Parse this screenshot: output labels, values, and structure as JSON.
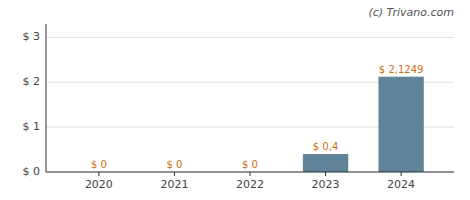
{
  "chart_data": {
    "type": "bar",
    "x": [
      2020,
      2021,
      2022,
      2023,
      2024
    ],
    "values": [
      0,
      0,
      0,
      0.4,
      2.1249
    ],
    "value_labels": [
      "$ 0",
      "$ 0",
      "$ 0",
      "$ 0,4",
      "$ 2,1249"
    ],
    "data_labels": true,
    "color": "#5f8499",
    "xlim": [
      2019.3,
      2024.7
    ],
    "xticks": [
      2020,
      2021,
      2022,
      2023,
      2024
    ],
    "ylim": [
      0,
      3.3
    ],
    "yticks": [
      {
        "value": 0,
        "label": "$ 0"
      },
      {
        "value": 1,
        "label": "$ 1"
      },
      {
        "value": 2,
        "label": "$ 2"
      },
      {
        "value": 3,
        "label": "$ 3"
      }
    ],
    "grid": true,
    "annotations": [
      "(c) Trivano.com"
    ]
  }
}
